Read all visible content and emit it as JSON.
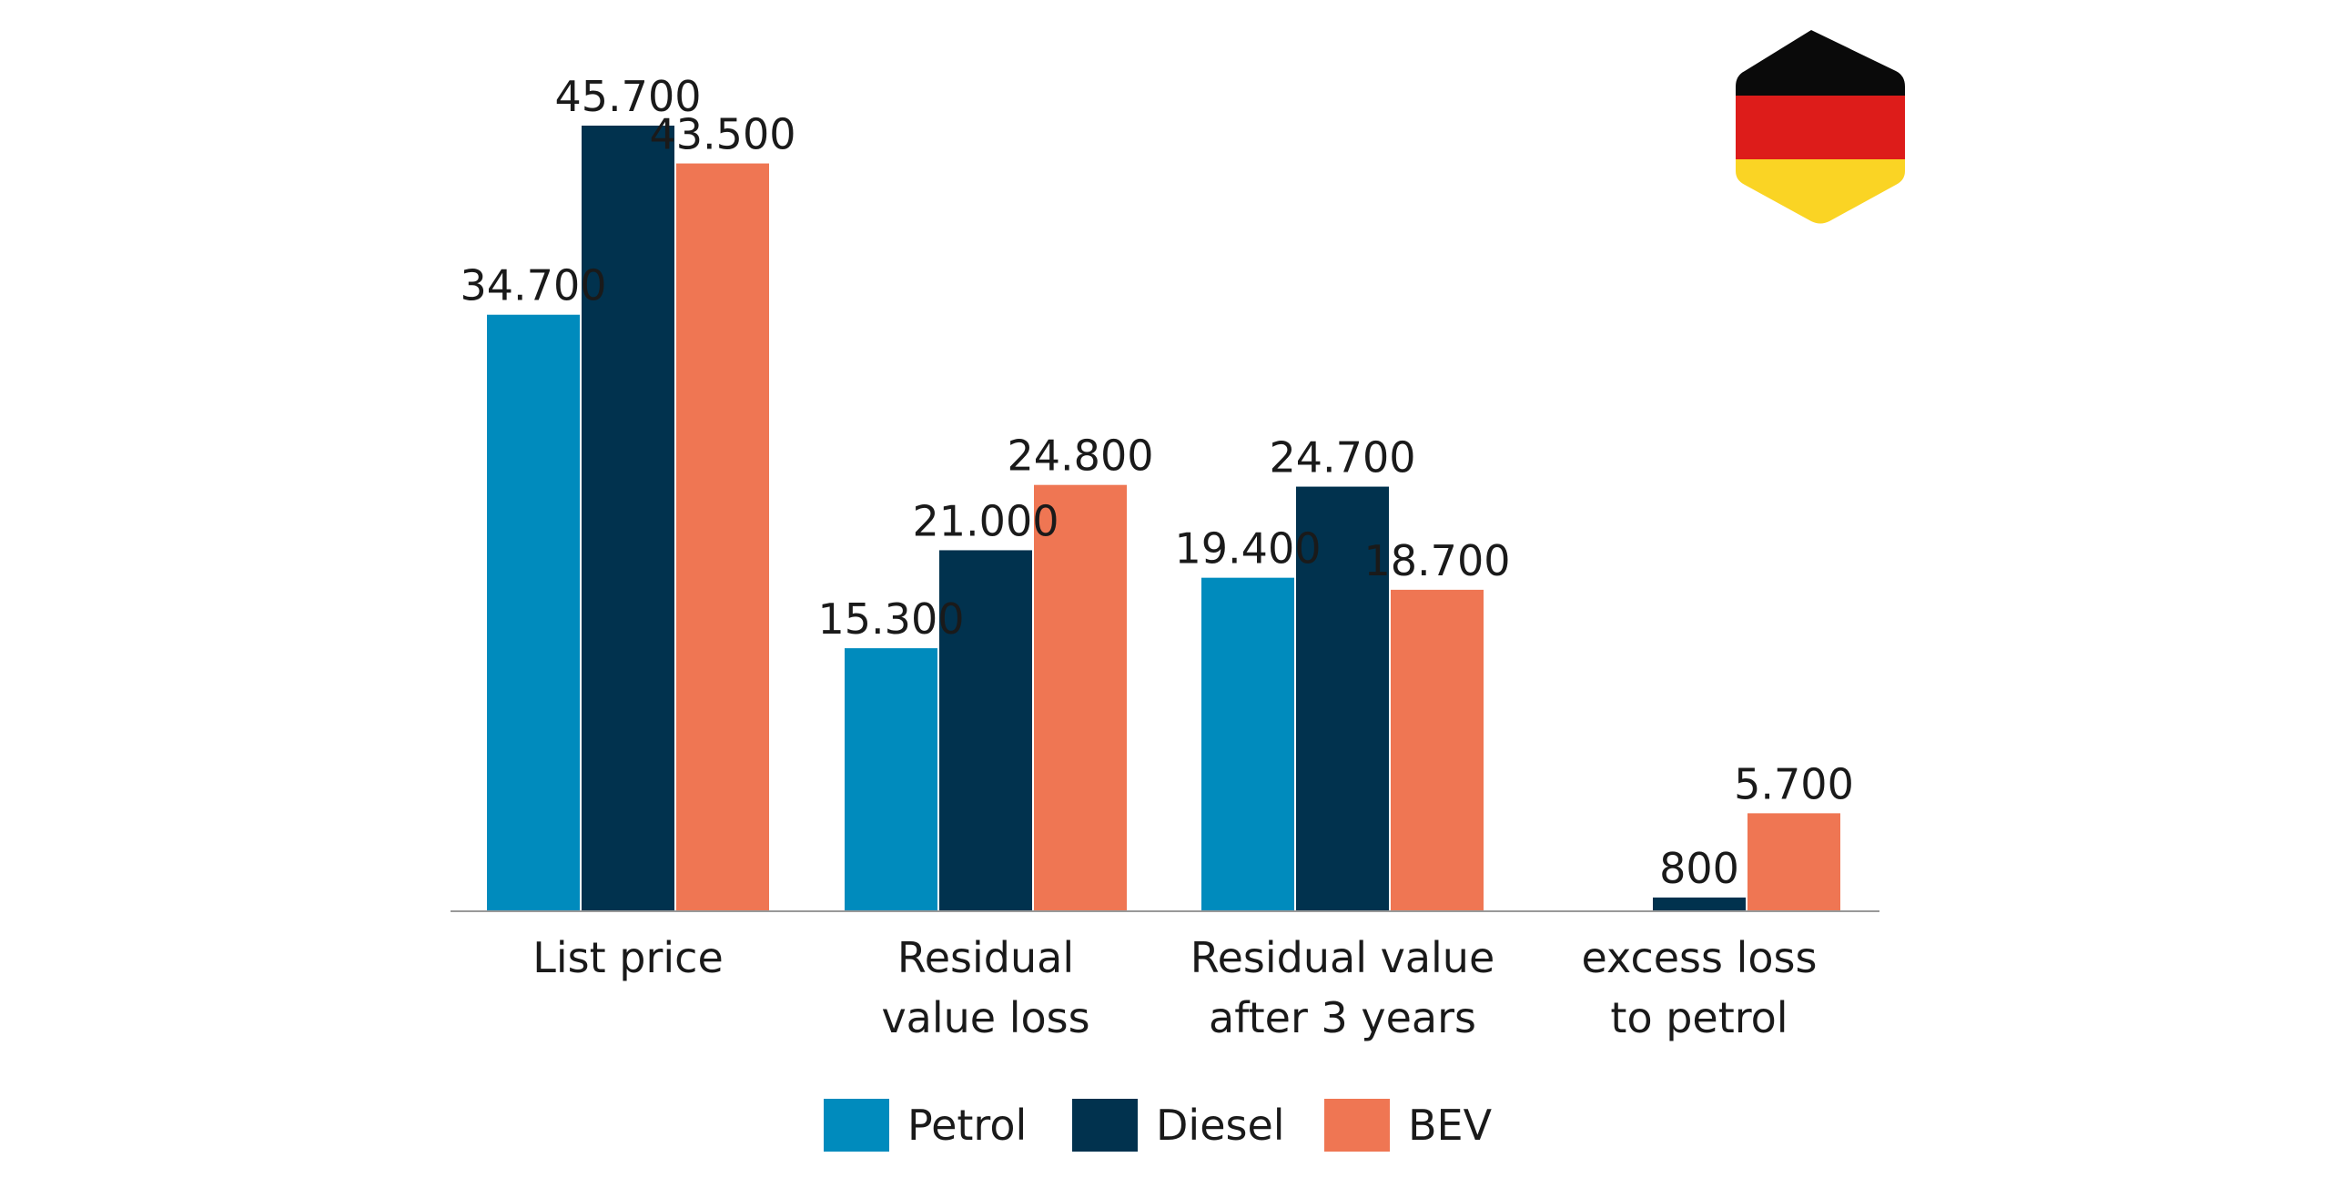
{
  "chart_data": {
    "type": "bar",
    "categories": [
      [
        "List price"
      ],
      [
        "Residual",
        "value loss"
      ],
      [
        "Residual value",
        "after 3 years"
      ],
      [
        "excess loss",
        "to petrol"
      ]
    ],
    "series": [
      {
        "name": "Petrol",
        "color": "#008bbd",
        "values": [
          34700,
          15300,
          19400,
          0
        ],
        "labels": [
          "34.700",
          "15.300",
          "19.400",
          ""
        ]
      },
      {
        "name": "Diesel",
        "color": "#01324e",
        "values": [
          45700,
          21000,
          24700,
          800
        ],
        "labels": [
          "45.700",
          "21.000",
          "24.700",
          "800"
        ]
      },
      {
        "name": "BEV",
        "color": "#ef7653",
        "values": [
          43500,
          24800,
          18700,
          5700
        ],
        "labels": [
          "43.500",
          "24.800",
          "18.700",
          "5.700"
        ]
      }
    ],
    "ylim": [
      0,
      45700
    ],
    "grid": false,
    "legend": "bottom-center"
  },
  "flag": {
    "icon": "germany-flag-icon",
    "colors": [
      "#0a0a0a",
      "#dd1c1a",
      "#fad424"
    ]
  }
}
